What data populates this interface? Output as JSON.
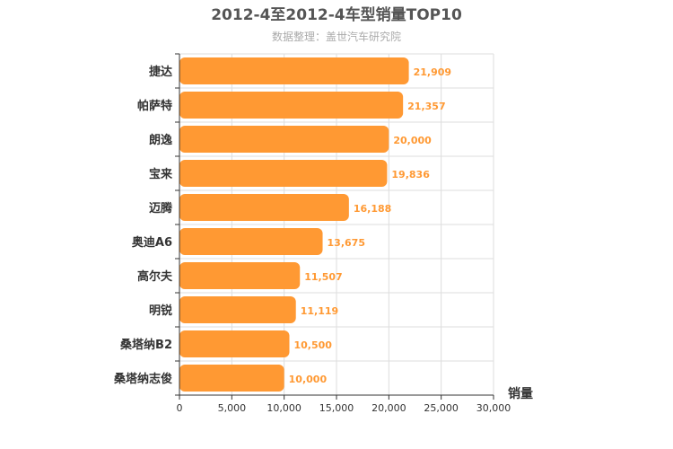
{
  "chart_data": {
    "type": "bar",
    "orientation": "horizontal",
    "title": "2012-4至2012-4车型销量TOP10",
    "subtitle": "数据整理：盖世汽车研究院",
    "xlabel": "销量",
    "ylabel": "",
    "xlim": [
      0,
      30000
    ],
    "x_ticks": [
      0,
      5000,
      10000,
      15000,
      20000,
      25000,
      30000
    ],
    "x_tick_labels": [
      "0",
      "5,000",
      "10,000",
      "15,000",
      "20,000",
      "25,000",
      "30,000"
    ],
    "grid": true,
    "bar_color": "#ff9933",
    "categories": [
      "捷达",
      "帕萨特",
      "朗逸",
      "宝来",
      "迈腾",
      "奥迪A6",
      "高尔夫",
      "明锐",
      "桑塔纳B2",
      "桑塔纳志俊"
    ],
    "values": [
      21909,
      21357,
      20000,
      19836,
      16188,
      13675,
      11507,
      11119,
      10500,
      10000
    ],
    "value_labels": [
      "21,909",
      "21,357",
      "20,000",
      "19,836",
      "16,188",
      "13,675",
      "11,507",
      "11,119",
      "10,500",
      "10,000"
    ]
  }
}
